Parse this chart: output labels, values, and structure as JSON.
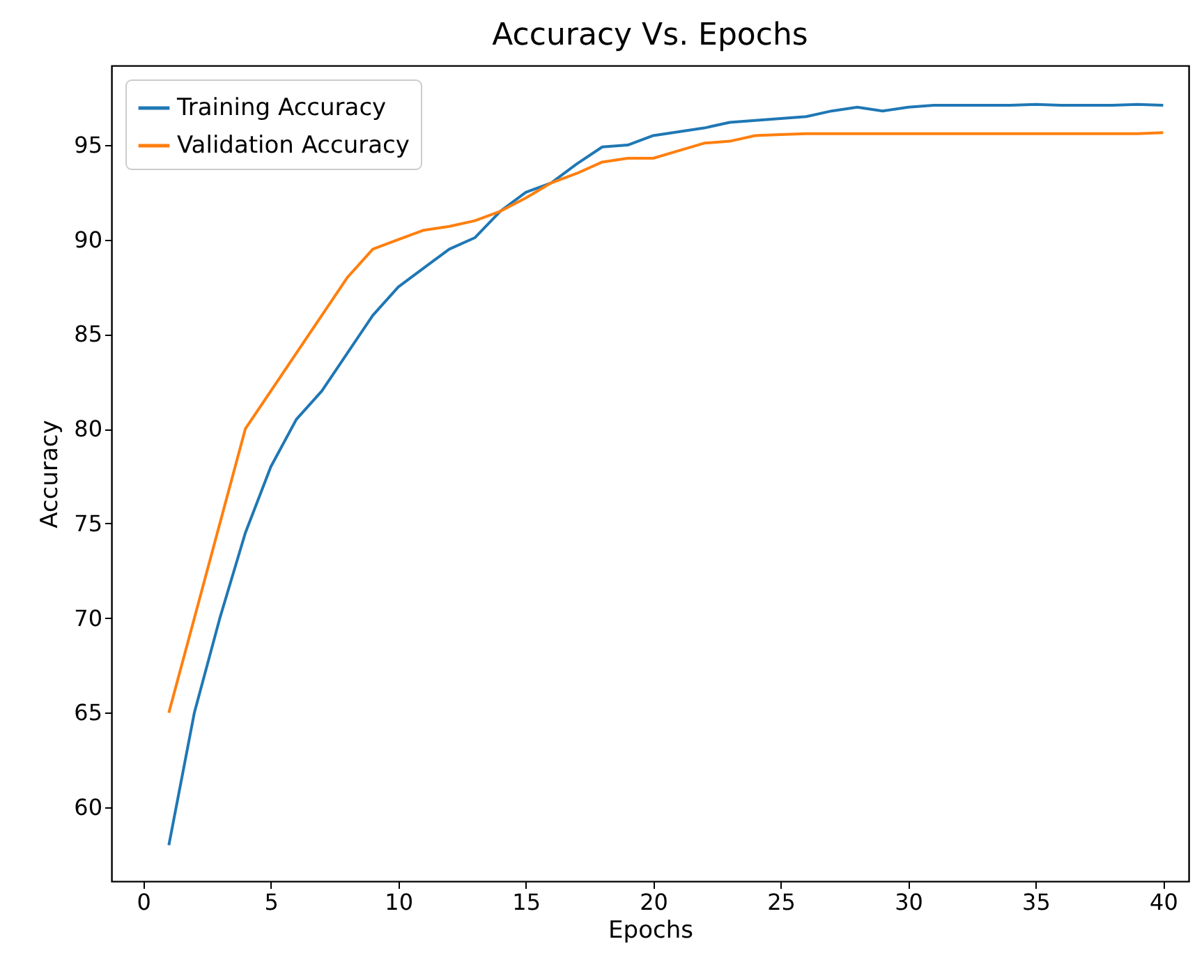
{
  "chart_data": {
    "type": "line",
    "title": "Accuracy Vs. Epochs",
    "xlabel": "Epochs",
    "ylabel": "Accuracy",
    "x": [
      1,
      2,
      3,
      4,
      5,
      6,
      7,
      8,
      9,
      10,
      11,
      12,
      13,
      14,
      15,
      16,
      17,
      18,
      19,
      20,
      21,
      22,
      23,
      24,
      25,
      26,
      27,
      28,
      29,
      30,
      31,
      32,
      33,
      34,
      35,
      36,
      37,
      38,
      39,
      40
    ],
    "series": [
      {
        "name": "Training Accuracy",
        "color": "#1f77b4",
        "values": [
          58,
          65,
          70,
          74.5,
          78,
          80.5,
          82,
          84,
          86,
          87.5,
          88.5,
          89.5,
          90.1,
          91.5,
          92.5,
          93,
          94,
          94.9,
          95,
          95.5,
          95.7,
          95.9,
          96.2,
          96.3,
          96.4,
          96.5,
          96.8,
          97,
          96.8,
          97,
          97.1,
          97.1,
          97.1,
          97.1,
          97.15,
          97.1,
          97.1,
          97.1,
          97.15,
          97.1
        ]
      },
      {
        "name": "Validation Accuracy",
        "color": "#ff7f0e",
        "values": [
          65,
          70,
          75,
          80,
          82,
          84,
          86,
          88,
          89.5,
          90,
          90.5,
          90.7,
          91,
          91.5,
          92.2,
          93,
          93.5,
          94.1,
          94.3,
          94.3,
          94.7,
          95.1,
          95.2,
          95.5,
          95.55,
          95.6,
          95.6,
          95.6,
          95.6,
          95.6,
          95.6,
          95.6,
          95.6,
          95.6,
          95.6,
          95.6,
          95.6,
          95.6,
          95.6,
          95.65
        ]
      }
    ],
    "xlim": [
      -1.25,
      41
    ],
    "ylim": [
      56.1,
      99.2
    ],
    "xticks": [
      0,
      5,
      10,
      15,
      20,
      25,
      30,
      35,
      40
    ],
    "yticks": [
      60,
      65,
      70,
      75,
      80,
      85,
      90,
      95
    ],
    "grid": false,
    "legend": "top left",
    "marker": "none",
    "line_style": "solid"
  }
}
